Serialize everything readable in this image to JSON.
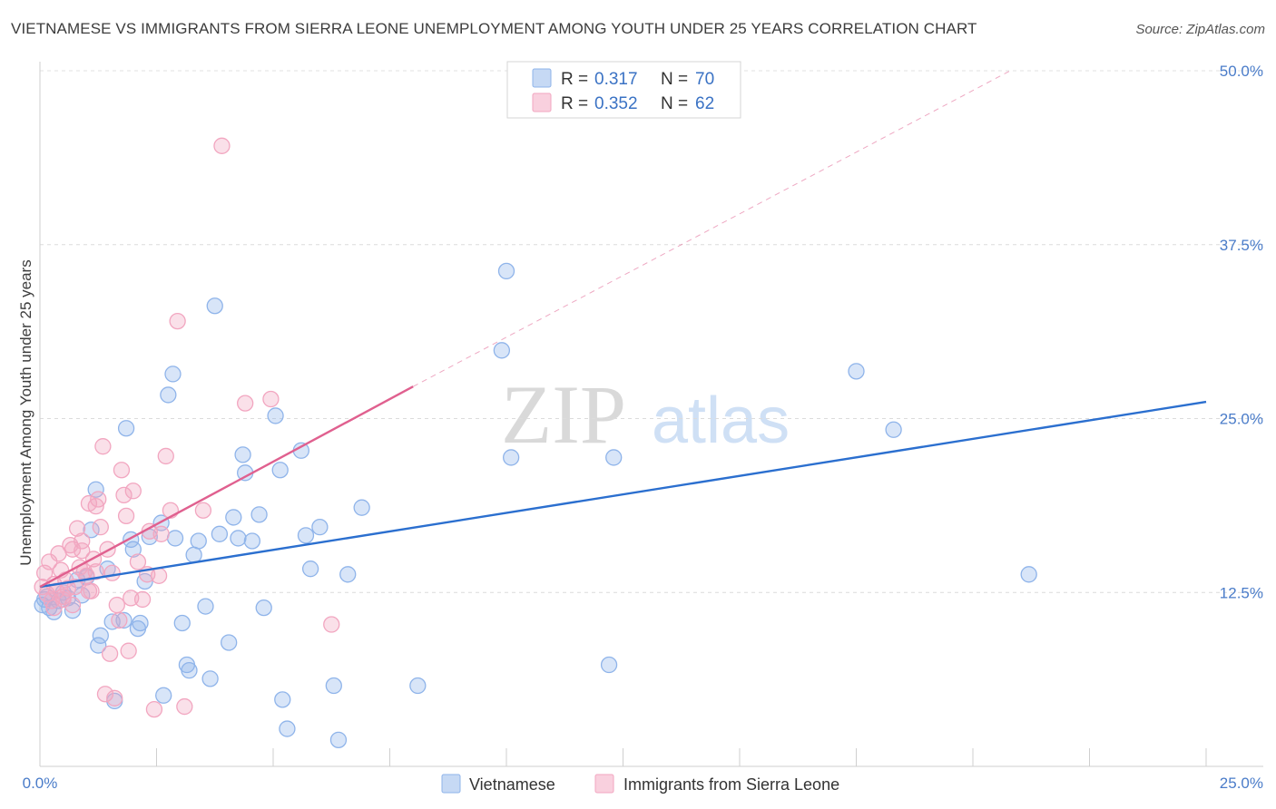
{
  "title": "VIETNAMESE VS IMMIGRANTS FROM SIERRA LEONE UNEMPLOYMENT AMONG YOUTH UNDER 25 YEARS CORRELATION CHART",
  "source": "Source: ZipAtlas.com",
  "watermark": {
    "zip": "ZIP",
    "atlas": "atlas"
  },
  "legend": {
    "r_label": "R =",
    "n_label": "N =",
    "rows": [
      {
        "r": "0.317",
        "n": "70",
        "color": "#8fb4ea"
      },
      {
        "r": "0.352",
        "n": "62",
        "color": "#f2a6c0"
      }
    ]
  },
  "chart_data": {
    "type": "scatter",
    "title": "VIETNAMESE VS IMMIGRANTS FROM SIERRA LEONE UNEMPLOYMENT AMONG YOUTH UNDER 25 YEARS CORRELATION CHART",
    "xlabel": "",
    "ylabel": "Unemployment Among Youth under 25 years",
    "xlim": [
      0,
      25
    ],
    "ylim": [
      0,
      50
    ],
    "x_tick_labels": [
      "0.0%",
      "25.0%"
    ],
    "y_ticks": [
      12.5,
      25.0,
      37.5,
      50.0
    ],
    "y_tick_labels": [
      "12.5%",
      "25.0%",
      "37.5%",
      "50.0%"
    ],
    "grid": true,
    "legend_position": "top-center",
    "series": [
      {
        "name": "Vietnamese",
        "color": "#8fb4ea",
        "line_color": "#2b6fcf",
        "trend": {
          "x": [
            0,
            25
          ],
          "y": [
            12.9,
            26.2
          ],
          "dashed_extension": false
        },
        "points": [
          [
            0.05,
            11.6
          ],
          [
            0.15,
            12.2
          ],
          [
            0.2,
            11.4
          ],
          [
            0.3,
            11.1
          ],
          [
            0.4,
            11.9
          ],
          [
            0.5,
            12.5
          ],
          [
            0.6,
            12.1
          ],
          [
            0.7,
            11.2
          ],
          [
            0.8,
            13.4
          ],
          [
            0.9,
            12.3
          ],
          [
            1.0,
            13.6
          ],
          [
            1.1,
            17.0
          ],
          [
            1.2,
            19.9
          ],
          [
            1.25,
            8.7
          ],
          [
            1.3,
            9.4
          ],
          [
            1.45,
            14.2
          ],
          [
            1.55,
            10.4
          ],
          [
            1.6,
            4.7
          ],
          [
            1.8,
            10.5
          ],
          [
            1.85,
            24.3
          ],
          [
            1.95,
            16.3
          ],
          [
            2.0,
            15.6
          ],
          [
            2.1,
            9.9
          ],
          [
            2.15,
            10.3
          ],
          [
            2.25,
            13.3
          ],
          [
            2.35,
            16.5
          ],
          [
            2.6,
            17.5
          ],
          [
            2.75,
            26.7
          ],
          [
            2.85,
            28.2
          ],
          [
            2.65,
            5.1
          ],
          [
            2.9,
            16.4
          ],
          [
            3.05,
            10.3
          ],
          [
            3.15,
            7.3
          ],
          [
            3.2,
            6.9
          ],
          [
            3.3,
            15.2
          ],
          [
            3.4,
            16.2
          ],
          [
            3.55,
            11.5
          ],
          [
            3.65,
            6.3
          ],
          [
            3.75,
            33.1
          ],
          [
            3.85,
            16.7
          ],
          [
            4.05,
            8.9
          ],
          [
            4.15,
            17.9
          ],
          [
            4.25,
            16.4
          ],
          [
            4.35,
            22.4
          ],
          [
            4.4,
            21.1
          ],
          [
            4.55,
            16.2
          ],
          [
            4.7,
            18.1
          ],
          [
            4.8,
            11.4
          ],
          [
            5.05,
            25.2
          ],
          [
            5.15,
            21.3
          ],
          [
            5.2,
            4.8
          ],
          [
            5.3,
            2.7
          ],
          [
            5.6,
            22.7
          ],
          [
            5.7,
            16.6
          ],
          [
            5.8,
            14.2
          ],
          [
            6.0,
            17.2
          ],
          [
            6.3,
            5.8
          ],
          [
            6.4,
            1.9
          ],
          [
            6.6,
            13.8
          ],
          [
            6.9,
            18.6
          ],
          [
            8.1,
            5.8
          ],
          [
            9.9,
            29.9
          ],
          [
            10.0,
            35.6
          ],
          [
            10.1,
            22.2
          ],
          [
            12.2,
            7.3
          ],
          [
            12.3,
            22.2
          ],
          [
            17.5,
            28.4
          ],
          [
            18.3,
            24.2
          ],
          [
            21.2,
            13.8
          ],
          [
            0.1,
            12.0
          ]
        ]
      },
      {
        "name": "Immigrants from Sierra Leone",
        "color": "#f2a6c0",
        "line_color": "#e0608f",
        "trend": {
          "x": [
            0,
            8.0
          ],
          "y": [
            12.9,
            27.3
          ],
          "dashed_extension": true,
          "extension_to": [
            20.8,
            50.0
          ]
        },
        "points": [
          [
            0.05,
            12.9
          ],
          [
            0.1,
            13.9
          ],
          [
            0.15,
            12.4
          ],
          [
            0.2,
            14.7
          ],
          [
            0.25,
            11.9
          ],
          [
            0.3,
            13.1
          ],
          [
            0.35,
            12.6
          ],
          [
            0.4,
            15.3
          ],
          [
            0.45,
            14.1
          ],
          [
            0.5,
            12.2
          ],
          [
            0.55,
            13.4
          ],
          [
            0.6,
            12.8
          ],
          [
            0.65,
            15.9
          ],
          [
            0.7,
            11.6
          ],
          [
            0.75,
            12.9
          ],
          [
            0.8,
            17.1
          ],
          [
            0.85,
            14.3
          ],
          [
            0.9,
            15.5
          ],
          [
            0.95,
            14.0
          ],
          [
            1.0,
            13.7
          ],
          [
            1.05,
            18.9
          ],
          [
            1.1,
            12.6
          ],
          [
            1.15,
            14.9
          ],
          [
            1.2,
            18.7
          ],
          [
            1.25,
            19.2
          ],
          [
            1.3,
            17.2
          ],
          [
            1.35,
            23.0
          ],
          [
            1.4,
            5.2
          ],
          [
            1.45,
            15.6
          ],
          [
            1.5,
            8.1
          ],
          [
            1.55,
            13.9
          ],
          [
            1.6,
            4.9
          ],
          [
            1.65,
            11.6
          ],
          [
            1.7,
            10.5
          ],
          [
            1.75,
            21.3
          ],
          [
            1.8,
            19.5
          ],
          [
            1.85,
            18.0
          ],
          [
            1.9,
            8.3
          ],
          [
            1.95,
            12.1
          ],
          [
            2.0,
            19.8
          ],
          [
            2.1,
            14.7
          ],
          [
            2.2,
            12.0
          ],
          [
            2.3,
            13.8
          ],
          [
            2.35,
            16.9
          ],
          [
            2.45,
            4.1
          ],
          [
            2.55,
            13.7
          ],
          [
            2.6,
            16.7
          ],
          [
            2.7,
            22.3
          ],
          [
            2.8,
            18.4
          ],
          [
            2.95,
            32.0
          ],
          [
            3.1,
            4.3
          ],
          [
            3.5,
            18.4
          ],
          [
            3.9,
            44.6
          ],
          [
            4.4,
            26.1
          ],
          [
            4.95,
            26.4
          ],
          [
            6.25,
            10.2
          ],
          [
            0.5,
            12.0
          ],
          [
            0.7,
            15.6
          ],
          [
            0.9,
            16.2
          ],
          [
            1.05,
            12.6
          ],
          [
            1.2,
            14.0
          ],
          [
            0.3,
            11.4
          ]
        ]
      }
    ]
  },
  "bottom_legend": [
    "Vietnamese",
    "Immigrants from Sierra Leone"
  ]
}
